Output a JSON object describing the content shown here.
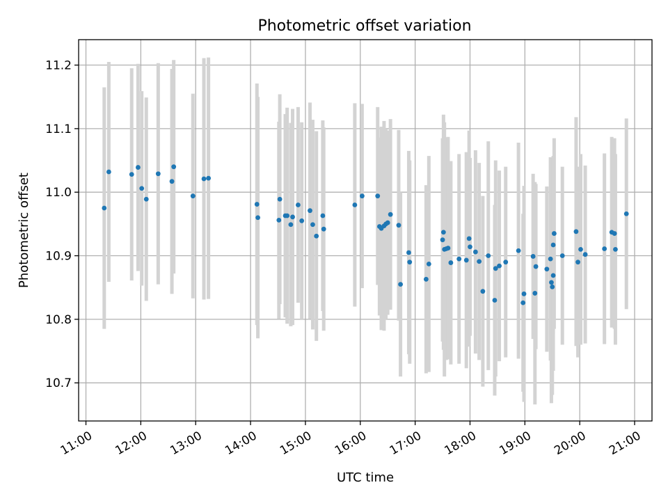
{
  "chart_data": {
    "type": "scatter",
    "title": "Photometric offset variation",
    "xlabel": "UTC time",
    "ylabel": "Photometric offset",
    "xlim": [
      "10:52",
      "21:19"
    ],
    "ylim": [
      10.64,
      11.24
    ],
    "x_ticks": [
      "11:00",
      "12:00",
      "13:00",
      "14:00",
      "15:00",
      "16:00",
      "17:00",
      "18:00",
      "19:00",
      "20:00",
      "21:00"
    ],
    "y_ticks": [
      "10.7",
      "10.8",
      "10.9",
      "11.0",
      "11.1",
      "11.2"
    ],
    "grid": true,
    "legend": "none",
    "colors": {
      "points": "#1f77b4",
      "error_bars": "#d3d3d3",
      "grid": "#b0b0b0"
    },
    "series": [
      {
        "x": [
          "11:20",
          "11:25",
          "11:50",
          "11:57",
          "12:01",
          "12:06",
          "12:19",
          "12:34",
          "12:36",
          "12:57",
          "13:09",
          "13:14",
          "14:07",
          "14:08",
          "14:31",
          "14:32",
          "14:38",
          "14:40",
          "14:44",
          "14:46",
          "14:52",
          "14:56",
          "15:05",
          "15:08",
          "15:12",
          "15:19",
          "15:20",
          "15:54",
          "16:02",
          "16:19",
          "16:21",
          "16:23",
          "16:26",
          "16:28",
          "16:30",
          "16:33",
          "16:42",
          "16:44",
          "16:53",
          "16:54",
          "17:12",
          "17:15",
          "17:30",
          "17:31",
          "17:32",
          "17:34",
          "17:36",
          "17:39",
          "17:48",
          "17:56",
          "17:59",
          "18:00",
          "18:06",
          "18:10",
          "18:14",
          "18:20",
          "18:27",
          "18:28",
          "18:32",
          "18:39",
          "18:53",
          "18:58",
          "18:59",
          "19:09",
          "19:11",
          "19:12",
          "19:24",
          "19:28",
          "19:29",
          "19:30",
          "19:31",
          "19:31",
          "19:32",
          "19:41",
          "19:56",
          "19:58",
          "20:01",
          "20:06",
          "20:27",
          "20:35",
          "20:38",
          "20:39",
          "20:51"
        ],
        "y": [
          10.975,
          11.032,
          11.028,
          11.039,
          11.006,
          10.989,
          11.029,
          11.017,
          11.04,
          10.994,
          11.021,
          11.022,
          10.981,
          10.96,
          10.956,
          10.989,
          10.963,
          10.963,
          10.949,
          10.961,
          10.98,
          10.955,
          10.971,
          10.949,
          10.931,
          10.963,
          10.942,
          10.98,
          10.994,
          10.994,
          10.946,
          10.943,
          10.947,
          10.95,
          10.952,
          10.965,
          10.948,
          10.855,
          10.905,
          10.89,
          10.863,
          10.887,
          10.925,
          10.937,
          10.91,
          10.911,
          10.912,
          10.889,
          10.895,
          10.893,
          10.927,
          10.914,
          10.906,
          10.891,
          10.844,
          10.9,
          10.83,
          10.88,
          10.884,
          10.89,
          10.908,
          10.826,
          10.84,
          10.899,
          10.841,
          10.883,
          10.879,
          10.895,
          10.858,
          10.851,
          10.869,
          10.917,
          10.935,
          10.9,
          10.938,
          10.89,
          10.91,
          10.902,
          10.911,
          10.937,
          10.935,
          10.91,
          10.966
        ],
        "yerr": [
          0.19,
          0.173,
          0.167,
          0.163,
          0.153,
          0.16,
          0.174,
          0.177,
          0.168,
          0.161,
          0.19,
          0.19,
          0.19,
          0.19,
          0.155,
          0.165,
          0.16,
          0.17,
          0.16,
          0.17,
          0.154,
          0.155,
          0.17,
          0.165,
          0.165,
          0.15,
          0.16,
          0.16,
          0.145,
          0.14,
          0.14,
          0.16,
          0.165,
          0.15,
          0.145,
          0.15,
          0.15,
          0.145,
          0.16,
          0.16,
          0.148,
          0.17,
          0.16,
          0.185,
          0.2,
          0.175,
          0.175,
          0.16,
          0.165,
          0.17,
          0.17,
          0.14,
          0.16,
          0.155,
          0.15,
          0.18,
          0.15,
          0.17,
          0.15,
          0.15,
          0.17,
          0.14,
          0.17,
          0.13,
          0.175,
          0.13,
          0.13,
          0.16,
          0.19,
          0.17,
          0.15,
          0.14,
          0.15,
          0.14,
          0.18,
          0.15,
          0.15,
          0.14,
          0.15,
          0.15,
          0.15,
          0.15,
          0.15
        ]
      }
    ]
  }
}
